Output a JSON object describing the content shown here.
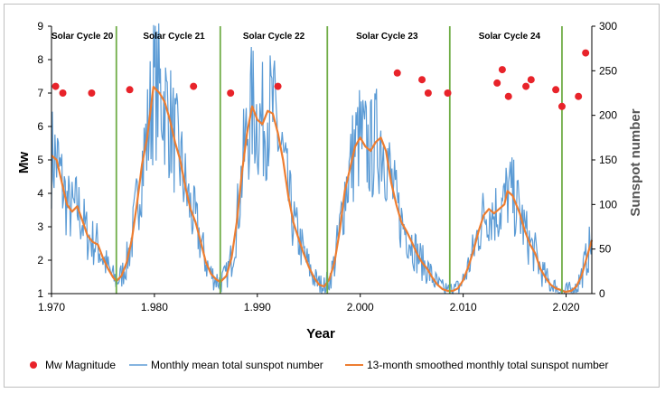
{
  "chart_data": {
    "type": "line",
    "xlabel": "Year",
    "ylabel_left": "Mw",
    "ylabel_right": "Sunspot number",
    "xlim": [
      1970,
      2022.5
    ],
    "ylim_left": [
      1,
      9
    ],
    "ylim_right": [
      0,
      300
    ],
    "x_ticks": [
      1970,
      1980,
      1990,
      2000,
      2010,
      2020
    ],
    "x_tick_labels": [
      "1.970",
      "1.980",
      "1.990",
      "2.000",
      "2.010",
      "2.020"
    ],
    "y_left_ticks": [
      1,
      2,
      3,
      4,
      5,
      6,
      7,
      8,
      9
    ],
    "y_right_ticks": [
      0,
      50,
      100,
      150,
      200,
      250,
      300
    ],
    "grid": false,
    "legend_position": "bottom",
    "cycle_boundaries": [
      1976.3,
      1986.4,
      1996.8,
      2008.7,
      2019.6
    ],
    "cycle_labels": [
      {
        "label": "Solar Cycle 20",
        "x": 1973.0
      },
      {
        "label": "Solar Cycle 21",
        "x": 1981.9
      },
      {
        "label": "Solar Cycle 22",
        "x": 1991.6
      },
      {
        "label": "Solar Cycle 23",
        "x": 2002.6
      },
      {
        "label": "Solar Cycle 24",
        "x": 2014.5
      }
    ],
    "colors": {
      "mw": "#e8232a",
      "monthly": "#5b9bd5",
      "smoothed": "#ed7d31",
      "boundary": "#70ad47",
      "axis": "#000000"
    },
    "series": [
      {
        "name": "Mw Magnitude",
        "axis": "left",
        "kind": "scatter",
        "points": [
          [
            1970.4,
            7.2
          ],
          [
            1971.1,
            7.0
          ],
          [
            1973.9,
            7.0
          ],
          [
            1977.6,
            7.1
          ],
          [
            1983.8,
            7.2
          ],
          [
            1987.4,
            7.0
          ],
          [
            1992.0,
            7.2
          ],
          [
            2003.6,
            7.6
          ],
          [
            2006.0,
            7.4
          ],
          [
            2006.6,
            7.0
          ],
          [
            2008.5,
            7.0
          ],
          [
            2013.3,
            7.3
          ],
          [
            2013.8,
            7.7
          ],
          [
            2014.4,
            6.9
          ],
          [
            2016.1,
            7.2
          ],
          [
            2016.6,
            7.4
          ],
          [
            2019.0,
            7.1
          ],
          [
            2019.6,
            6.6
          ],
          [
            2021.2,
            6.9
          ],
          [
            2021.9,
            8.2
          ]
        ]
      },
      {
        "name": "Monthly mean total sunspot number",
        "axis": "right",
        "kind": "line-noisy"
      },
      {
        "name": "13-month smoothed monthly total sunspot number",
        "axis": "right",
        "kind": "line",
        "points": [
          [
            1970.0,
            155
          ],
          [
            1970.5,
            150
          ],
          [
            1971.0,
            125
          ],
          [
            1971.5,
            100
          ],
          [
            1972.0,
            92
          ],
          [
            1972.5,
            98
          ],
          [
            1973.0,
            82
          ],
          [
            1973.5,
            65
          ],
          [
            1974.0,
            58
          ],
          [
            1974.5,
            55
          ],
          [
            1975.0,
            40
          ],
          [
            1975.5,
            28
          ],
          [
            1976.0,
            18
          ],
          [
            1976.3,
            14
          ],
          [
            1976.8,
            20
          ],
          [
            1977.3,
            35
          ],
          [
            1977.8,
            60
          ],
          [
            1978.3,
            100
          ],
          [
            1978.8,
            145
          ],
          [
            1979.3,
            175
          ],
          [
            1979.9,
            232
          ],
          [
            1980.5,
            225
          ],
          [
            1981.0,
            215
          ],
          [
            1981.5,
            195
          ],
          [
            1982.0,
            170
          ],
          [
            1982.5,
            150
          ],
          [
            1983.0,
            120
          ],
          [
            1983.5,
            95
          ],
          [
            1984.0,
            80
          ],
          [
            1984.5,
            58
          ],
          [
            1985.0,
            35
          ],
          [
            1985.5,
            22
          ],
          [
            1986.0,
            16
          ],
          [
            1986.4,
            13
          ],
          [
            1987.0,
            20
          ],
          [
            1987.5,
            40
          ],
          [
            1988.0,
            80
          ],
          [
            1988.5,
            135
          ],
          [
            1989.0,
            180
          ],
          [
            1989.5,
            210
          ],
          [
            1990.0,
            195
          ],
          [
            1990.5,
            190
          ],
          [
            1991.0,
            205
          ],
          [
            1991.5,
            202
          ],
          [
            1992.0,
            180
          ],
          [
            1992.5,
            150
          ],
          [
            1993.0,
            110
          ],
          [
            1993.5,
            80
          ],
          [
            1994.0,
            62
          ],
          [
            1994.5,
            45
          ],
          [
            1995.0,
            30
          ],
          [
            1995.5,
            18
          ],
          [
            1996.0,
            10
          ],
          [
            1996.5,
            8
          ],
          [
            1997.0,
            16
          ],
          [
            1997.5,
            35
          ],
          [
            1998.0,
            70
          ],
          [
            1998.5,
            115
          ],
          [
            1999.0,
            140
          ],
          [
            1999.5,
            165
          ],
          [
            2000.0,
            175
          ],
          [
            2000.5,
            165
          ],
          [
            2001.0,
            160
          ],
          [
            2001.5,
            170
          ],
          [
            2002.0,
            175
          ],
          [
            2002.5,
            160
          ],
          [
            2003.0,
            125
          ],
          [
            2003.5,
            100
          ],
          [
            2004.0,
            80
          ],
          [
            2004.5,
            70
          ],
          [
            2005.0,
            58
          ],
          [
            2005.5,
            45
          ],
          [
            2006.0,
            35
          ],
          [
            2006.5,
            28
          ],
          [
            2007.0,
            18
          ],
          [
            2007.5,
            10
          ],
          [
            2008.0,
            5
          ],
          [
            2008.5,
            3
          ],
          [
            2009.0,
            3
          ],
          [
            2009.5,
            6
          ],
          [
            2010.0,
            15
          ],
          [
            2010.5,
            30
          ],
          [
            2011.0,
            48
          ],
          [
            2011.5,
            70
          ],
          [
            2012.0,
            88
          ],
          [
            2012.5,
            95
          ],
          [
            2013.0,
            90
          ],
          [
            2013.5,
            95
          ],
          [
            2014.0,
            100
          ],
          [
            2014.3,
            115
          ],
          [
            2014.8,
            110
          ],
          [
            2015.5,
            90
          ],
          [
            2016.0,
            70
          ],
          [
            2016.5,
            55
          ],
          [
            2017.0,
            45
          ],
          [
            2017.5,
            28
          ],
          [
            2018.0,
            18
          ],
          [
            2018.5,
            10
          ],
          [
            2019.0,
            6
          ],
          [
            2019.5,
            4
          ],
          [
            2019.9,
            2
          ],
          [
            2020.5,
            3
          ],
          [
            2021.0,
            8
          ],
          [
            2021.5,
            20
          ],
          [
            2022.0,
            40
          ],
          [
            2022.5,
            60
          ]
        ]
      }
    ]
  }
}
